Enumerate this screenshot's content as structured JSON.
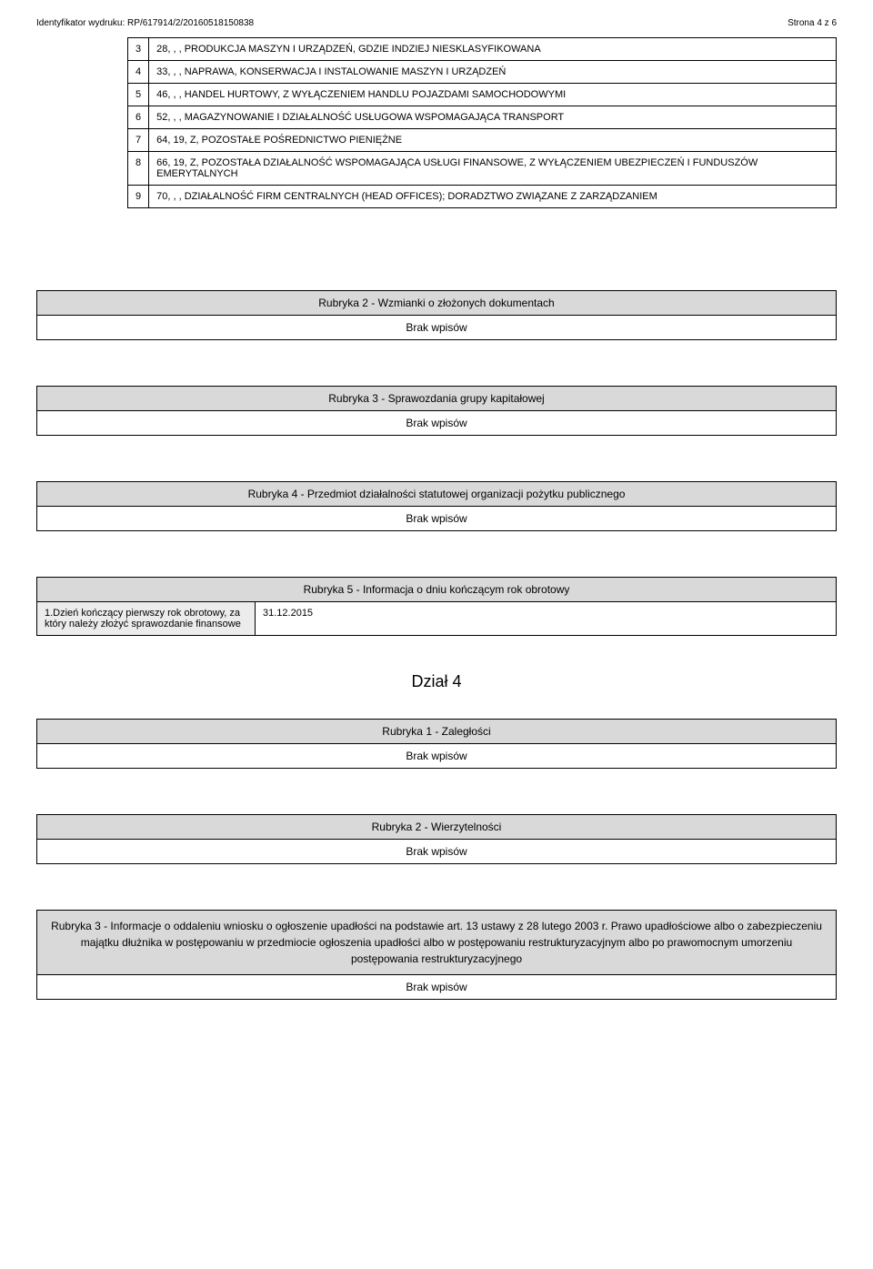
{
  "header": {
    "id_label": "Identyfikator wydruku:",
    "id_value": "RP/617914/2/20160518150838",
    "page_label": "Strona 4 z 6"
  },
  "activities": [
    {
      "n": "3",
      "text": "28, , , PRODUKCJA MASZYN I URZĄDZEŃ, GDZIE INDZIEJ NIESKLASYFIKOWANA"
    },
    {
      "n": "4",
      "text": "33, , , NAPRAWA, KONSERWACJA I INSTALOWANIE MASZYN I URZĄDZEŃ"
    },
    {
      "n": "5",
      "text": "46, , , HANDEL HURTOWY, Z WYŁĄCZENIEM HANDLU POJAZDAMI SAMOCHODOWYMI"
    },
    {
      "n": "6",
      "text": "52, , , MAGAZYNOWANIE I DZIAŁALNOŚĆ USŁUGOWA WSPOMAGAJĄCA TRANSPORT"
    },
    {
      "n": "7",
      "text": "64, 19, Z, POZOSTAŁE POŚREDNICTWO PIENIĘŻNE"
    },
    {
      "n": "8",
      "text": "66, 19, Z, POZOSTAŁA DZIAŁALNOŚĆ WSPOMAGAJĄCA USŁUGI FINANSOWE, Z WYŁĄCZENIEM UBEZPIECZEŃ I FUNDUSZÓW EMERYTALNYCH"
    },
    {
      "n": "9",
      "text": "70, , , DZIAŁALNOŚĆ FIRM CENTRALNYCH (HEAD OFFICES); DORADZTWO ZWIĄZANE Z ZARZĄDZANIEM"
    }
  ],
  "empty_text": "Brak wpisów",
  "rubryka2": "Rubryka 2 - Wzmianki o złożonych dokumentach",
  "rubryka3": "Rubryka 3 - Sprawozdania grupy kapitałowej",
  "rubryka4": "Rubryka 4 - Przedmiot działalności statutowej organizacji pożytku publicznego",
  "rubryka5": {
    "title": "Rubryka 5 - Informacja o dniu kończącym rok obrotowy",
    "label": "1.Dzień kończący pierwszy rok obrotowy, za który należy złożyć sprawozdanie finansowe",
    "value": "31.12.2015"
  },
  "dzial4": "Dział 4",
  "d4_rubryka1": "Rubryka 1 - Zaległości",
  "d4_rubryka2": "Rubryka 2 - Wierzytelności",
  "d4_rubryka3": "Rubryka 3 - Informacje o oddaleniu wniosku o ogłoszenie upadłości na podstawie art. 13 ustawy z 28 lutego 2003 r. Prawo upadłościowe albo o zabezpieczeniu majątku dłużnika w postępowaniu w przedmiocie ogłoszenia upadłości albo w postępowaniu restrukturyzacyjnym albo po prawomocnym umorzeniu postępowania restrukturyzacyjnego"
}
